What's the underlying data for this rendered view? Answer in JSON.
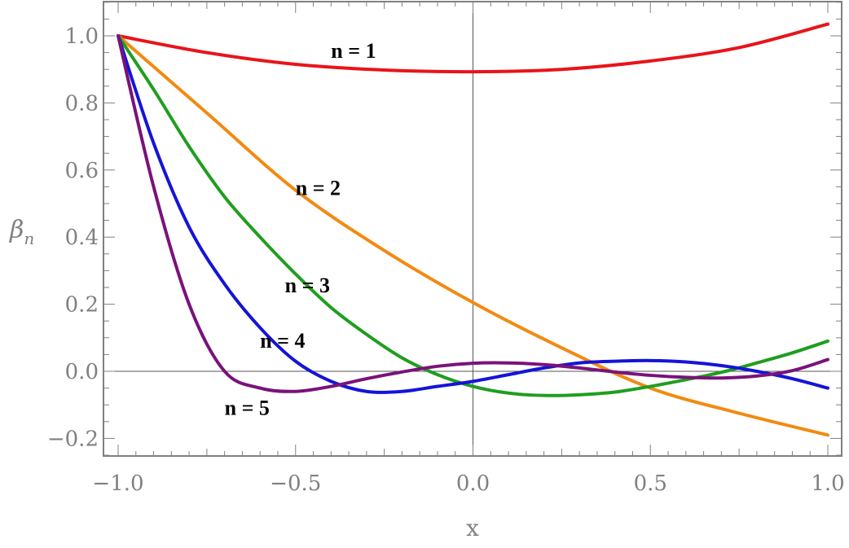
{
  "chart_data": {
    "type": "line",
    "xlabel": "x",
    "ylabel": "β",
    "ylabel_sub": "n",
    "xlim": [
      -1.0,
      1.0
    ],
    "ylim": [
      -0.25,
      1.1
    ],
    "xticks": [
      -1.0,
      -0.5,
      0.0,
      0.5,
      1.0
    ],
    "xtick_labels": [
      "−1.0",
      "−0.5",
      "0.0",
      "0.5",
      "1.0"
    ],
    "yticks": [
      -0.2,
      0.0,
      0.2,
      0.4,
      0.6,
      0.8,
      1.0
    ],
    "ytick_labels": [
      "−0.2",
      "0.0",
      "0.2",
      "0.4",
      "0.6",
      "0.8",
      "1.0"
    ],
    "grid": false,
    "series": [
      {
        "name": "n = 1",
        "color": "#e8141a",
        "x": [
          -1.0,
          -0.75,
          -0.5,
          -0.25,
          0.0,
          0.25,
          0.5,
          0.75,
          1.0
        ],
        "y": [
          1.0,
          0.95,
          0.915,
          0.898,
          0.893,
          0.9,
          0.925,
          0.965,
          1.035
        ]
      },
      {
        "name": "n = 2",
        "color": "#f28a12",
        "x": [
          -1.0,
          -0.75,
          -0.5,
          -0.25,
          0.0,
          0.25,
          0.5,
          0.75,
          1.0
        ],
        "y": [
          1.0,
          0.77,
          0.54,
          0.36,
          0.205,
          0.07,
          -0.05,
          -0.125,
          -0.19
        ]
      },
      {
        "name": "n = 3",
        "color": "#1f9e1f",
        "x": [
          -1.0,
          -0.9,
          -0.8,
          -0.7,
          -0.6,
          -0.5,
          -0.4,
          -0.3,
          -0.2,
          -0.1,
          0.0,
          0.1,
          0.2,
          0.3,
          0.4,
          0.5,
          0.6,
          0.7,
          0.8,
          0.9,
          1.0
        ],
        "y": [
          1.0,
          0.84,
          0.67,
          0.52,
          0.4,
          0.29,
          0.19,
          0.11,
          0.04,
          -0.01,
          -0.045,
          -0.065,
          -0.072,
          -0.07,
          -0.062,
          -0.045,
          -0.025,
          -0.003,
          0.025,
          0.055,
          0.09
        ]
      },
      {
        "name": "n = 4",
        "color": "#1414d8",
        "x": [
          -1.0,
          -0.9,
          -0.8,
          -0.7,
          -0.6,
          -0.5,
          -0.4,
          -0.3,
          -0.2,
          -0.1,
          0.0,
          0.1,
          0.2,
          0.3,
          0.4,
          0.5,
          0.6,
          0.7,
          0.8,
          0.9,
          1.0
        ],
        "y": [
          1.0,
          0.68,
          0.43,
          0.26,
          0.13,
          0.03,
          -0.03,
          -0.06,
          -0.06,
          -0.045,
          -0.03,
          -0.01,
          0.01,
          0.025,
          0.03,
          0.032,
          0.028,
          0.017,
          0.0,
          -0.022,
          -0.05
        ]
      },
      {
        "name": "n = 5",
        "color": "#7a127a",
        "x": [
          -1.0,
          -0.9,
          -0.8,
          -0.7,
          -0.6,
          -0.5,
          -0.4,
          -0.3,
          -0.2,
          -0.1,
          0.0,
          0.1,
          0.2,
          0.3,
          0.4,
          0.5,
          0.6,
          0.7,
          0.8,
          0.9,
          1.0
        ],
        "y": [
          1.0,
          0.55,
          0.2,
          0.0,
          -0.05,
          -0.06,
          -0.045,
          -0.022,
          -0.002,
          0.015,
          0.024,
          0.025,
          0.02,
          0.01,
          -0.002,
          -0.012,
          -0.018,
          -0.02,
          -0.014,
          0.002,
          0.035
        ]
      }
    ],
    "series_labels": [
      {
        "text": "n = 1",
        "x": -0.4,
        "y": 0.935
      },
      {
        "text": "n = 2",
        "x": -0.5,
        "y": 0.525
      },
      {
        "text": "n = 3",
        "x": -0.53,
        "y": 0.235
      },
      {
        "text": "n = 4",
        "x": -0.6,
        "y": 0.07
      },
      {
        "text": "n = 5",
        "x": -0.7,
        "y": -0.13
      }
    ]
  }
}
